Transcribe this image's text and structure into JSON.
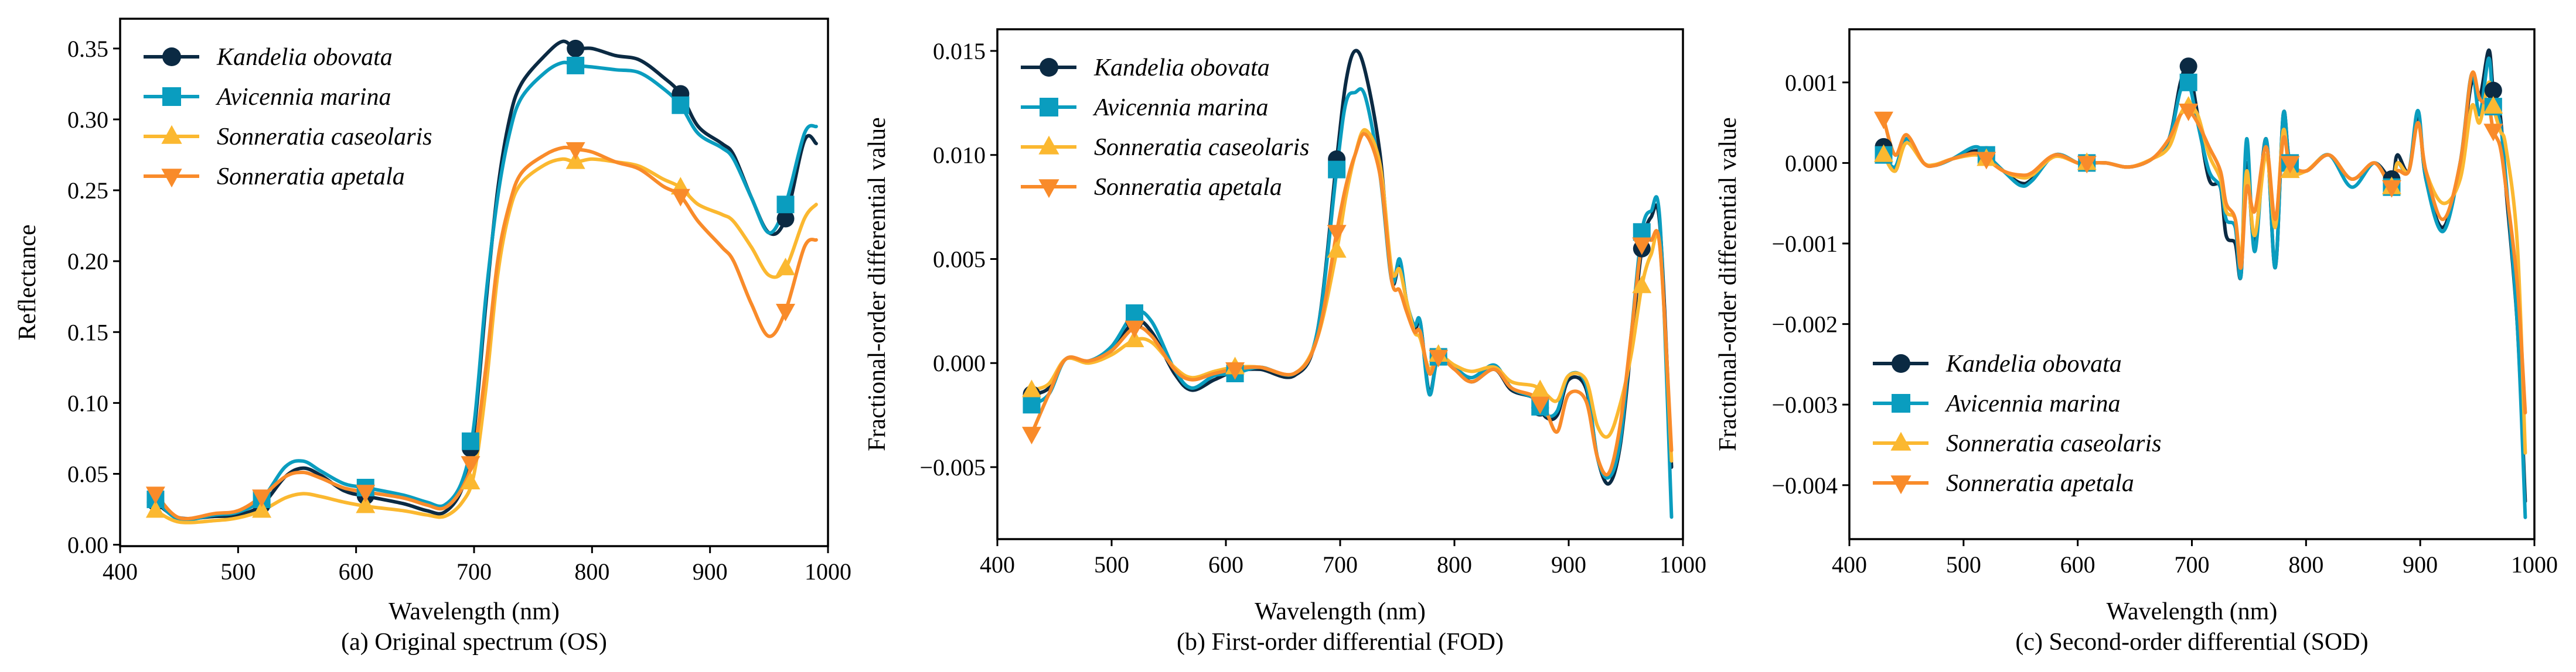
{
  "colors": {
    "Kandelia obovata": "#0b2a43",
    "Avicennia marina": "#0a9dbf",
    "Sonneratia caseolaris": "#fbb830",
    "Sonneratia apetala": "#f98b2a"
  },
  "markers": {
    "Kandelia obovata": "circle",
    "Avicennia marina": "square",
    "Sonneratia caseolaris": "triangle-up",
    "Sonneratia apetala": "triangle-down"
  },
  "chart_data": [
    {
      "type": "line",
      "caption": "(a) Original spectrum (OS)",
      "xlabel": "Wavelength (nm)",
      "ylabel": "Reflectance",
      "xlim": [
        400,
        1000
      ],
      "ylim": [
        -0.001,
        0.371
      ],
      "xticks": [
        400,
        500,
        600,
        700,
        800,
        900,
        1000
      ],
      "xtick_labels": [
        "400",
        "500",
        "600",
        "700",
        "800",
        "900",
        "1000"
      ],
      "yticks": [
        0,
        0.05,
        0.1,
        0.15,
        0.2,
        0.25,
        0.3,
        0.35
      ],
      "ytick_labels": [
        "0.00",
        "0.05",
        "0.10",
        "0.15",
        "0.20",
        "0.25",
        "0.30",
        "0.35"
      ],
      "legend_position": "upper-left",
      "marker_x": [
        430,
        520,
        608,
        697,
        786,
        875,
        964
      ],
      "x": [
        430,
        450,
        480,
        500,
        520,
        540,
        555,
        570,
        590,
        610,
        640,
        660,
        675,
        690,
        700,
        710,
        720,
        730,
        740,
        760,
        775,
        786,
        800,
        820,
        840,
        860,
        875,
        890,
        910,
        920,
        935,
        950,
        964,
        980,
        990
      ],
      "series": [
        {
          "name": "Kandelia obovata",
          "values": [
            0.03,
            0.019,
            0.02,
            0.021,
            0.028,
            0.048,
            0.054,
            0.049,
            0.038,
            0.034,
            0.029,
            0.024,
            0.023,
            0.04,
            0.08,
            0.17,
            0.25,
            0.3,
            0.325,
            0.345,
            0.355,
            0.35,
            0.35,
            0.345,
            0.342,
            0.33,
            0.318,
            0.295,
            0.283,
            0.275,
            0.245,
            0.22,
            0.23,
            0.285,
            0.283
          ]
        },
        {
          "name": "Avicennia marina",
          "values": [
            0.032,
            0.018,
            0.021,
            0.023,
            0.032,
            0.055,
            0.059,
            0.052,
            0.043,
            0.04,
            0.035,
            0.03,
            0.028,
            0.045,
            0.085,
            0.175,
            0.245,
            0.29,
            0.315,
            0.333,
            0.34,
            0.338,
            0.337,
            0.335,
            0.333,
            0.322,
            0.31,
            0.29,
            0.28,
            0.272,
            0.245,
            0.22,
            0.24,
            0.29,
            0.295
          ]
        },
        {
          "name": "Sonneratia caseolaris",
          "values": [
            0.024,
            0.016,
            0.017,
            0.019,
            0.024,
            0.033,
            0.036,
            0.034,
            0.03,
            0.027,
            0.024,
            0.021,
            0.02,
            0.03,
            0.05,
            0.11,
            0.19,
            0.235,
            0.255,
            0.268,
            0.272,
            0.27,
            0.272,
            0.27,
            0.267,
            0.258,
            0.252,
            0.24,
            0.233,
            0.228,
            0.21,
            0.19,
            0.195,
            0.23,
            0.24
          ]
        },
        {
          "name": "Sonneratia apetala",
          "values": [
            0.036,
            0.019,
            0.022,
            0.024,
            0.034,
            0.048,
            0.051,
            0.047,
            0.04,
            0.037,
            0.033,
            0.028,
            0.026,
            0.04,
            0.065,
            0.125,
            0.2,
            0.24,
            0.262,
            0.275,
            0.28,
            0.279,
            0.277,
            0.27,
            0.265,
            0.253,
            0.246,
            0.228,
            0.21,
            0.2,
            0.17,
            0.147,
            0.165,
            0.21,
            0.215
          ]
        }
      ]
    },
    {
      "type": "line",
      "caption": "(b) First-order differential (FOD)",
      "xlabel": "Wavelength (nm)",
      "ylabel": "Fractional-order differential value",
      "xlim": [
        400,
        1000
      ],
      "ylim": [
        -0.00846,
        0.01604
      ],
      "xticks": [
        400,
        500,
        600,
        700,
        800,
        900,
        1000
      ],
      "xtick_labels": [
        "400",
        "500",
        "600",
        "700",
        "800",
        "900",
        "1000"
      ],
      "yticks": [
        -0.005,
        0,
        0.005,
        0.01,
        0.015
      ],
      "ytick_labels": [
        "−0.005",
        "0.000",
        "0.005",
        "0.010",
        "0.015"
      ],
      "legend_position": "upper-left",
      "marker_x": [
        430,
        520,
        608,
        697,
        786,
        875,
        964
      ],
      "x": [
        430,
        445,
        460,
        480,
        500,
        520,
        535,
        555,
        570,
        590,
        608,
        630,
        660,
        680,
        697,
        705,
        713,
        722,
        735,
        745,
        752,
        758,
        765,
        770,
        778,
        786,
        800,
        815,
        835,
        850,
        870,
        880,
        890,
        900,
        915,
        925,
        935,
        945,
        955,
        964,
        972,
        980,
        990
      ],
      "series": [
        {
          "name": "Kandelia obovata",
          "values": [
            -0.0015,
            -0.0012,
            0.0002,
            0.0001,
            0.0006,
            0.002,
            0.0015,
            -0.0005,
            -0.0013,
            -0.0008,
            -0.0004,
            -0.0003,
            -0.0006,
            0.0015,
            0.0098,
            0.0135,
            0.015,
            0.014,
            0.01,
            0.004,
            0.0048,
            0.003,
            0.0015,
            0.002,
            -0.0014,
            0.0003,
            -0.0002,
            -0.0009,
            -0.0003,
            -0.0013,
            -0.0017,
            -0.0026,
            -0.0025,
            -0.0008,
            -0.0012,
            -0.0045,
            -0.0058,
            -0.004,
            0.001,
            0.0055,
            0.007,
            0.0065,
            -0.005
          ]
        },
        {
          "name": "Avicennia marina",
          "values": [
            -0.002,
            -0.0015,
            0.0002,
            0.0001,
            0.0008,
            0.0024,
            0.002,
            -0.0003,
            -0.0012,
            -0.0006,
            -0.0005,
            -0.0002,
            -0.0005,
            0.0015,
            0.0093,
            0.0125,
            0.013,
            0.0128,
            0.009,
            0.004,
            0.005,
            0.003,
            0.0018,
            0.002,
            -0.0015,
            0.0003,
            -0.0002,
            -0.0007,
            -0.0001,
            -0.0012,
            -0.0017,
            -0.0025,
            -0.0023,
            -0.0006,
            -0.001,
            -0.0045,
            -0.0055,
            -0.0038,
            0.0015,
            0.0063,
            0.0073,
            0.0067,
            -0.0074
          ]
        },
        {
          "name": "Sonneratia caseolaris",
          "values": [
            -0.0013,
            -0.001,
            0.0002,
            0.0,
            0.0004,
            0.0011,
            0.001,
            -0.0002,
            -0.0007,
            -0.0004,
            -0.0002,
            -0.0002,
            -0.0005,
            0.0012,
            0.0054,
            0.008,
            0.01,
            0.0112,
            0.0095,
            0.0045,
            0.0045,
            0.003,
            0.0015,
            0.0012,
            -0.0003,
            0.0004,
            -0.0001,
            -0.0004,
            -0.0002,
            -0.0009,
            -0.0011,
            -0.0015,
            -0.0018,
            -0.0006,
            -0.0008,
            -0.003,
            -0.0035,
            -0.002,
            0.0005,
            0.0037,
            0.0052,
            0.0055,
            -0.0047
          ]
        },
        {
          "name": "Sonneratia apetala",
          "values": [
            -0.0034,
            -0.0015,
            0.0002,
            0.0001,
            0.0006,
            0.0017,
            0.0013,
            -0.0003,
            -0.0008,
            -0.0005,
            -0.0003,
            -0.0002,
            -0.0005,
            0.0012,
            0.0063,
            0.0085,
            0.01,
            0.011,
            0.009,
            0.004,
            0.0035,
            0.0025,
            0.0015,
            0.0015,
            -0.0005,
            0.0003,
            -0.0003,
            -0.0009,
            -0.0003,
            -0.0012,
            -0.0016,
            -0.0023,
            -0.0033,
            -0.0015,
            -0.0018,
            -0.0045,
            -0.0053,
            -0.003,
            0.0015,
            0.0057,
            0.0059,
            0.0055,
            -0.0042
          ]
        }
      ]
    },
    {
      "type": "line",
      "caption": "(c) Second-order differential (SOD)",
      "xlabel": "Wavelength (nm)",
      "ylabel": "Fractional-order differential value",
      "xlim": [
        400,
        1000
      ],
      "ylim": [
        -0.00467,
        0.00166
      ],
      "xticks": [
        400,
        500,
        600,
        700,
        800,
        900,
        1000
      ],
      "xtick_labels": [
        "400",
        "500",
        "600",
        "700",
        "800",
        "900",
        "1000"
      ],
      "yticks": [
        -0.004,
        -0.003,
        -0.002,
        -0.001,
        0,
        0.001
      ],
      "ytick_labels": [
        "−0.004",
        "−0.003",
        "−0.002",
        "−0.001",
        "0.000",
        "0.001"
      ],
      "legend_position": "lower-left",
      "marker_x": [
        430,
        520,
        608,
        697,
        786,
        875,
        964
      ],
      "x": [
        430,
        440,
        450,
        465,
        475,
        490,
        510,
        520,
        535,
        550,
        560,
        580,
        600,
        608,
        625,
        645,
        665,
        680,
        690,
        697,
        705,
        715,
        725,
        730,
        738,
        743,
        748,
        755,
        765,
        773,
        780,
        786,
        800,
        820,
        840,
        860,
        875,
        880,
        890,
        898,
        905,
        920,
        935,
        945,
        952,
        960,
        964,
        970,
        975,
        985,
        992
      ],
      "series": [
        {
          "name": "Kandelia obovata",
          "values": [
            0.0002,
            -0.0001,
            0.0003,
            0.0,
            -3e-05,
            5e-05,
            0.00015,
            0.0001,
            -0.0001,
            -0.00025,
            -0.0002,
            0.0001,
            0.0,
            0.0,
            0.0,
            -5e-05,
            5e-05,
            0.0003,
            0.001,
            0.0012,
            0.0006,
            -0.0002,
            -0.0003,
            -0.0009,
            -0.001,
            -0.0014,
            0.0,
            -0.001,
            0.0003,
            -0.0013,
            0.0006,
            0.0,
            -0.0001,
            0.0001,
            -0.0002,
            0.0,
            -0.0002,
            0.0001,
            -0.0001,
            0.0006,
            -0.0002,
            -0.0008,
            0.0,
            0.001,
            0.0008,
            0.0014,
            0.0009,
            0.0006,
            -0.0003,
            -0.002,
            -0.0042
          ]
        },
        {
          "name": "Avicennia marina",
          "values": [
            0.0001,
            -5e-05,
            0.0003,
            0.0,
            -3e-05,
            5e-05,
            0.0002,
            0.0001,
            -0.0001,
            -0.00028,
            -0.00022,
            0.0001,
            0.0,
            0.0,
            0.0,
            -5e-05,
            5e-05,
            0.0003,
            0.0009,
            0.001,
            0.0005,
            -0.0001,
            -0.0003,
            -0.0007,
            -0.0008,
            -0.0014,
            0.0003,
            -0.0011,
            0.0003,
            -0.0013,
            0.0006,
            0.0,
            -0.0001,
            0.0001,
            -0.0003,
            0.0,
            -0.0003,
            0.0,
            -0.0001,
            0.00065,
            -0.0002,
            -0.00085,
            0.0,
            0.0011,
            0.0006,
            0.0013,
            0.0007,
            0.0005,
            -0.0002,
            -0.002,
            -0.0044
          ]
        },
        {
          "name": "Sonneratia caseolaris",
          "values": [
            0.0001,
            -0.0001,
            0.00025,
            0.0,
            -2e-05,
            5e-05,
            0.0001,
            5e-05,
            -0.0001,
            -0.00018,
            -0.00015,
            8e-05,
            0.0,
            0.0,
            0.0,
            -5e-05,
            5e-05,
            0.0002,
            0.0006,
            0.0007,
            0.0006,
            0.0001,
            -0.0002,
            -0.0006,
            -0.0007,
            -0.0012,
            -0.0001,
            -0.0009,
            0.0001,
            -0.0008,
            0.0004,
            -0.0001,
            -0.0001,
            0.0001,
            -0.0002,
            0.0,
            -0.0003,
            0.0,
            -0.0001,
            0.0005,
            -0.0001,
            -0.0005,
            -0.0002,
            0.0007,
            0.0005,
            0.001,
            0.0007,
            0.0004,
            0.0002,
            -0.001,
            -0.0036
          ]
        },
        {
          "name": "Sonneratia apetala",
          "values": [
            0.00055,
            0.0001,
            0.00035,
            0.0,
            -3e-05,
            5e-05,
            0.00012,
            5e-05,
            -0.0001,
            -0.00015,
            -0.00012,
            0.0001,
            0.0,
            0.0,
            0.0,
            -5e-05,
            5e-05,
            0.0003,
            0.0006,
            0.00065,
            0.0005,
            0.0002,
            -0.0001,
            -0.0005,
            -0.0007,
            -0.0013,
            -0.0003,
            -0.0006,
            0.0002,
            -0.0007,
            0.0003,
            0.0,
            -0.0001,
            0.0001,
            -0.0002,
            0.0,
            -0.0003,
            -0.0001,
            -0.0001,
            0.0005,
            -0.0001,
            -0.0007,
            0.0,
            0.0011,
            0.0008,
            0.0007,
            0.0004,
            0.0002,
            -0.0003,
            -0.0015,
            -0.0031
          ]
        }
      ]
    }
  ]
}
